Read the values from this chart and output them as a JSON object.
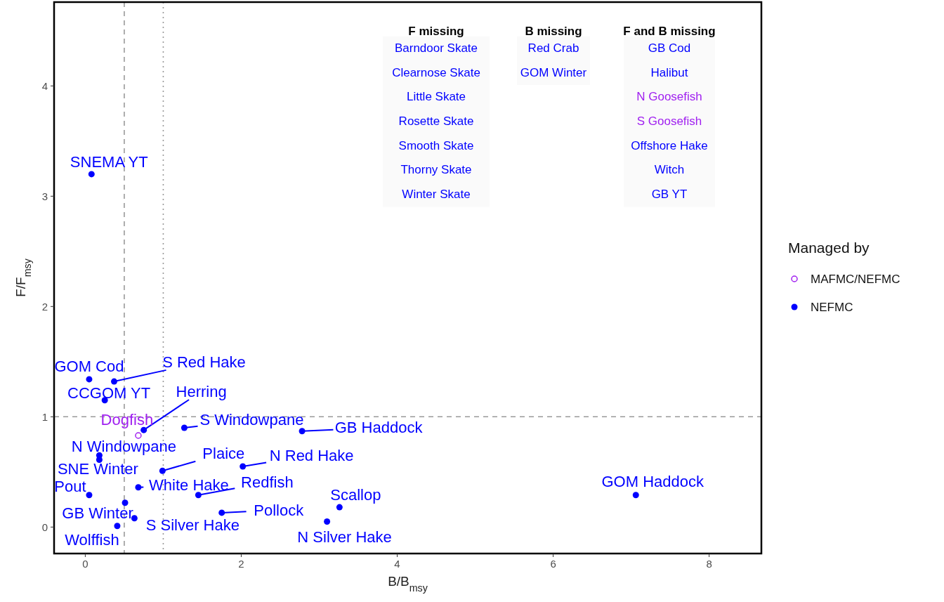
{
  "chart_data": [
    {
      "type": "scatter",
      "xlabel": "B/B$_{msy}$",
      "ylabel": "F/F$_{msy}$",
      "legend_title": "Managed by",
      "legend": "right",
      "xlim": [
        -0.4,
        8.67
      ],
      "ylim": [
        -0.24,
        4.76
      ],
      "xticks": [
        0,
        2,
        4,
        6,
        8
      ],
      "yticks": [
        0,
        1,
        2,
        3,
        4
      ],
      "marker": "circle",
      "series": [
        {
          "name": "MAFMC/NEFMC",
          "color": "#a020f0",
          "x": [
            0.68
          ],
          "values": [
            0.83
          ]
        },
        {
          "name": "NEFMC",
          "color": "#0000ff",
          "x": [
            0.08,
            0.05,
            0.37,
            0.25,
            0.75,
            1.27,
            2.78,
            0.18,
            0.18,
            0.99,
            2.02,
            0.68,
            1.45,
            0.05,
            7.06,
            3.26,
            0.51,
            0.63,
            1.75,
            3.1,
            0.41
          ],
          "values": [
            3.2,
            1.34,
            1.32,
            1.15,
            0.88,
            0.9,
            0.87,
            0.65,
            0.61,
            0.51,
            0.55,
            0.36,
            0.29,
            0.29,
            0.29,
            0.18,
            0.22,
            0.08,
            0.13,
            0.05,
            0.01
          ]
        }
      ],
      "ref_lines": [
        {
          "axis": "x",
          "value": 0.5,
          "color": "#999999",
          "line_style": "dashed"
        },
        {
          "axis": "x",
          "value": 1,
          "color": "#999999",
          "line_style": "dotted"
        },
        {
          "axis": "y",
          "value": 1,
          "color": "#999999",
          "line_style": "dashed"
        }
      ],
      "annotations": [
        {
          "text": "SNEMA YT",
          "x": 0.08,
          "y": 3.2
        },
        {
          "text": "GOM Cod",
          "x": 0.05,
          "y": 1.34
        },
        {
          "text": "S Red Hake",
          "x": 0.37,
          "y": 1.32
        },
        {
          "text": "CCGOM YT",
          "x": 0.25,
          "y": 1.15
        },
        {
          "text": "Herring",
          "x": 0.75,
          "y": 0.88
        },
        {
          "text": "Dogfish",
          "x": 0.68,
          "y": 0.83
        },
        {
          "text": "S Windowpane",
          "x": 1.27,
          "y": 0.9
        },
        {
          "text": "GB Haddock",
          "x": 2.78,
          "y": 0.87
        },
        {
          "text": "N Windowpane",
          "x": 0.18,
          "y": 0.65
        },
        {
          "text": "SNE Winter",
          "x": 0.18,
          "y": 0.61
        },
        {
          "text": "Plaice",
          "x": 0.99,
          "y": 0.51
        },
        {
          "text": "N Red Hake",
          "x": 2.02,
          "y": 0.55
        },
        {
          "text": "White Hake",
          "x": 0.68,
          "y": 0.36
        },
        {
          "text": "Redfish",
          "x": 1.45,
          "y": 0.29
        },
        {
          "text": "Pout",
          "x": 0.05,
          "y": 0.29
        },
        {
          "text": "GOM Haddock",
          "x": 7.06,
          "y": 0.29
        },
        {
          "text": "Scallop",
          "x": 3.26,
          "y": 0.18
        },
        {
          "text": "GB Winter",
          "x": 0.51,
          "y": 0.22
        },
        {
          "text": "S Silver Hake",
          "x": 0.63,
          "y": 0.08
        },
        {
          "text": "Pollock",
          "x": 1.75,
          "y": 0.13
        },
        {
          "text": "N Silver Hake",
          "x": 3.1,
          "y": 0.05
        },
        {
          "text": "Wolffish",
          "x": 0.41,
          "y": 0.01
        }
      ]
    },
    {
      "type": "other",
      "categories": [
        "F missing",
        "B missing",
        "F and B missing"
      ],
      "cell_labels": [
        [
          "Barndoor Skate",
          "Red Crab",
          "GB Cod"
        ],
        [
          "Clearnose Skate",
          "GOM Winter",
          "Halibut"
        ],
        [
          "Little Skate",
          null,
          "N Goosefish"
        ],
        [
          "Rosette Skate",
          null,
          "S Goosefish"
        ],
        [
          "Smooth Skate",
          null,
          "Offshore Hake"
        ],
        [
          "Thorny Skate",
          null,
          "Witch"
        ],
        [
          "Winter Skate",
          null,
          "GB YT"
        ]
      ],
      "colors": [
        [
          "#0000ff",
          "#0000ff",
          "#0000ff"
        ],
        [
          "#0000ff",
          "#0000ff",
          "#0000ff"
        ],
        [
          "#0000ff",
          null,
          "#a020f0"
        ],
        [
          "#0000ff",
          null,
          "#a020f0"
        ],
        [
          "#0000ff",
          null,
          "#0000ff"
        ],
        [
          "#0000ff",
          null,
          "#0000ff"
        ],
        [
          "#0000ff",
          null,
          "#0000ff"
        ]
      ]
    }
  ]
}
